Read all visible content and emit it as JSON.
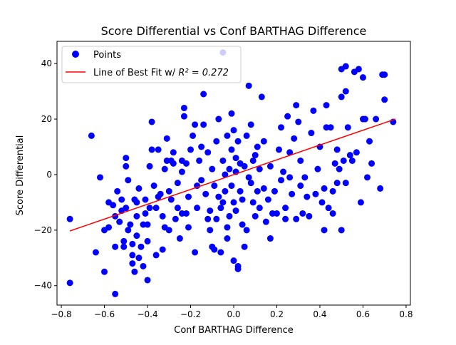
{
  "chart_data": {
    "type": "scatter",
    "title": "Score Differential vs Conf BARTHAG Difference",
    "xlabel": "Conf BARTHAG Difference",
    "ylabel": "Score Differential",
    "xlim": [
      -0.82,
      0.82
    ],
    "ylim": [
      -47,
      48
    ],
    "xticks": [
      -0.8,
      -0.6,
      -0.4,
      -0.2,
      0.0,
      0.2,
      0.4,
      0.6,
      0.8
    ],
    "xtick_labels": [
      "−0.8",
      "−0.6",
      "−0.4",
      "−0.2",
      "0.0",
      "0.2",
      "0.4",
      "0.6",
      "0.8"
    ],
    "yticks": [
      -40,
      -20,
      0,
      20,
      40
    ],
    "ytick_labels": [
      "−40",
      "−20",
      "0",
      "20",
      "40"
    ],
    "grid": false,
    "legend": {
      "placement": "top-left",
      "entries": [
        {
          "label": "Points",
          "marker": "circle",
          "color": "#0000ff"
        },
        {
          "label": "Line of Best Fit w/ ",
          "math_label": "R² = 0.272",
          "color": "#ff0000"
        }
      ]
    },
    "series": [
      {
        "name": "Points",
        "color": "#0000ff",
        "points": [
          [
            -0.76,
            -39
          ],
          [
            -0.76,
            -16
          ],
          [
            -0.66,
            14
          ],
          [
            -0.64,
            -28
          ],
          [
            -0.62,
            -1
          ],
          [
            -0.6,
            -35
          ],
          [
            -0.6,
            -20
          ],
          [
            -0.58,
            -19
          ],
          [
            -0.58,
            -10
          ],
          [
            -0.56,
            -11
          ],
          [
            -0.55,
            -43
          ],
          [
            -0.55,
            -26
          ],
          [
            -0.55,
            -15
          ],
          [
            -0.54,
            -6
          ],
          [
            -0.53,
            -17
          ],
          [
            -0.52,
            -13
          ],
          [
            -0.52,
            -9
          ],
          [
            -0.51,
            -24
          ],
          [
            -0.51,
            -26
          ],
          [
            -0.5,
            6
          ],
          [
            -0.5,
            3
          ],
          [
            -0.5,
            -12
          ],
          [
            -0.49,
            -20
          ],
          [
            -0.49,
            -2
          ],
          [
            -0.48,
            -18
          ],
          [
            -0.47,
            -32
          ],
          [
            -0.47,
            -29
          ],
          [
            -0.47,
            -25
          ],
          [
            -0.46,
            -35
          ],
          [
            -0.46,
            -9
          ],
          [
            -0.45,
            -22
          ],
          [
            -0.45,
            -15
          ],
          [
            -0.45,
            -10
          ],
          [
            -0.44,
            -5
          ],
          [
            -0.44,
            -30
          ],
          [
            -0.43,
            -26
          ],
          [
            -0.42,
            -33
          ],
          [
            -0.42,
            -18
          ],
          [
            -0.41,
            -14
          ],
          [
            -0.41,
            -9
          ],
          [
            -0.4,
            -38
          ],
          [
            -0.4,
            -24
          ],
          [
            -0.4,
            -18
          ],
          [
            -0.39,
            3
          ],
          [
            -0.39,
            -12
          ],
          [
            -0.38,
            9
          ],
          [
            -0.38,
            19
          ],
          [
            -0.37,
            -4
          ],
          [
            -0.36,
            -29
          ],
          [
            -0.36,
            -12
          ],
          [
            -0.35,
            9
          ],
          [
            -0.35,
            -8
          ],
          [
            -0.34,
            -7
          ],
          [
            -0.33,
            -27
          ],
          [
            -0.33,
            -15
          ],
          [
            -0.32,
            -19
          ],
          [
            -0.32,
            2
          ],
          [
            -0.31,
            5
          ],
          [
            -0.31,
            13
          ],
          [
            -0.3,
            -20
          ],
          [
            -0.3,
            -6
          ],
          [
            -0.29,
            5
          ],
          [
            -0.29,
            -9
          ],
          [
            -0.28,
            8
          ],
          [
            -0.28,
            4
          ],
          [
            -0.27,
            -16
          ],
          [
            -0.26,
            -12
          ],
          [
            -0.26,
            -3
          ],
          [
            -0.25,
            -23
          ],
          [
            -0.24,
            -14
          ],
          [
            -0.24,
            1
          ],
          [
            -0.24,
            5
          ],
          [
            -0.23,
            21
          ],
          [
            -0.23,
            24
          ],
          [
            -0.22,
            -14
          ],
          [
            -0.22,
            4
          ],
          [
            -0.21,
            -8
          ],
          [
            -0.21,
            -19
          ],
          [
            -0.2,
            9
          ],
          [
            -0.19,
            14
          ],
          [
            -0.18,
            18
          ],
          [
            -0.18,
            -28
          ],
          [
            -0.17,
            -4
          ],
          [
            -0.17,
            -12
          ],
          [
            -0.16,
            5
          ],
          [
            -0.15,
            10
          ],
          [
            -0.15,
            -2
          ],
          [
            -0.14,
            29
          ],
          [
            -0.14,
            18
          ],
          [
            -0.13,
            -7
          ],
          [
            -0.12,
            8
          ],
          [
            -0.12,
            -16
          ],
          [
            -0.11,
            -20
          ],
          [
            -0.11,
            -13
          ],
          [
            -0.1,
            -26
          ],
          [
            -0.1,
            2
          ],
          [
            -0.09,
            -27
          ],
          [
            -0.09,
            -4
          ],
          [
            -0.08,
            12
          ],
          [
            -0.08,
            -16
          ],
          [
            -0.07,
            20
          ],
          [
            -0.07,
            -8
          ],
          [
            -0.06,
            -12
          ],
          [
            -0.06,
            -28
          ],
          [
            -0.05,
            5
          ],
          [
            -0.05,
            -10
          ],
          [
            -0.05,
            44
          ],
          [
            -0.04,
            0
          ],
          [
            -0.04,
            -6
          ],
          [
            -0.03,
            14
          ],
          [
            -0.03,
            -23
          ],
          [
            -0.03,
            -19
          ],
          [
            -0.02,
            2
          ],
          [
            -0.02,
            -15
          ],
          [
            -0.01,
            22
          ],
          [
            -0.01,
            9
          ],
          [
            -0.01,
            -4
          ],
          [
            0.0,
            -31
          ],
          [
            0.0,
            16
          ],
          [
            0.0,
            -10
          ],
          [
            0.01,
            6
          ],
          [
            0.01,
            -13
          ],
          [
            0.01,
            1
          ],
          [
            0.02,
            -34
          ],
          [
            0.02,
            -33
          ],
          [
            0.02,
            12
          ],
          [
            0.03,
            -6
          ],
          [
            0.03,
            4
          ],
          [
            0.04,
            -18
          ],
          [
            0.04,
            -9
          ],
          [
            0.05,
            3
          ],
          [
            0.05,
            -26
          ],
          [
            0.06,
            -20
          ],
          [
            0.06,
            14
          ],
          [
            0.07,
            32
          ],
          [
            0.07,
            -1
          ],
          [
            0.08,
            -3
          ],
          [
            0.08,
            18
          ],
          [
            0.09,
            -10
          ],
          [
            0.09,
            5
          ],
          [
            0.1,
            -15
          ],
          [
            0.1,
            7
          ],
          [
            0.11,
            -6
          ],
          [
            0.11,
            10
          ],
          [
            0.12,
            -12
          ],
          [
            0.12,
            2
          ],
          [
            0.13,
            28
          ],
          [
            0.14,
            -5
          ],
          [
            0.14,
            12
          ],
          [
            0.15,
            -17
          ],
          [
            0.16,
            -9
          ],
          [
            0.17,
            3
          ],
          [
            0.17,
            -23
          ],
          [
            0.18,
            -14
          ],
          [
            0.19,
            -6
          ],
          [
            0.2,
            -14
          ],
          [
            0.21,
            9
          ],
          [
            0.22,
            -2
          ],
          [
            0.22,
            17
          ],
          [
            0.23,
            1
          ],
          [
            0.24,
            -12
          ],
          [
            0.24,
            -16
          ],
          [
            0.25,
            21
          ],
          [
            0.26,
            -1
          ],
          [
            0.26,
            8
          ],
          [
            0.27,
            -7
          ],
          [
            0.28,
            13
          ],
          [
            0.29,
            25
          ],
          [
            0.29,
            -16
          ],
          [
            0.3,
            19
          ],
          [
            0.31,
            -4
          ],
          [
            0.31,
            5
          ],
          [
            0.32,
            -14
          ],
          [
            0.33,
            -1
          ],
          [
            0.34,
            -8
          ],
          [
            0.35,
            -15
          ],
          [
            0.36,
            15
          ],
          [
            0.37,
            23
          ],
          [
            0.38,
            -7
          ],
          [
            0.39,
            2
          ],
          [
            0.4,
            10
          ],
          [
            0.41,
            -10
          ],
          [
            0.42,
            -5
          ],
          [
            0.43,
            17
          ],
          [
            0.43,
            25
          ],
          [
            0.44,
            -12
          ],
          [
            0.45,
            17
          ],
          [
            0.46,
            -14
          ],
          [
            0.46,
            -6
          ],
          [
            0.47,
            4
          ],
          [
            0.48,
            -3
          ],
          [
            0.48,
            9
          ],
          [
            0.49,
            2
          ],
          [
            0.5,
            -20
          ],
          [
            0.5,
            28
          ],
          [
            0.51,
            5
          ],
          [
            0.52,
            30
          ],
          [
            0.52,
            39
          ],
          [
            0.53,
            17
          ],
          [
            0.54,
            7
          ],
          [
            0.55,
            5
          ],
          [
            0.56,
            37
          ],
          [
            0.57,
            8
          ],
          [
            0.58,
            38
          ],
          [
            0.59,
            -10
          ],
          [
            0.6,
            20
          ],
          [
            0.6,
            35
          ],
          [
            0.61,
            20
          ],
          [
            0.62,
            -1
          ],
          [
            0.63,
            12
          ],
          [
            0.64,
            4
          ],
          [
            0.66,
            20
          ],
          [
            0.68,
            -5
          ],
          [
            0.69,
            36
          ],
          [
            0.7,
            36
          ],
          [
            0.7,
            27
          ],
          [
            0.74,
            19
          ],
          [
            0.42,
            -20
          ],
          [
            0.5,
            38
          ],
          [
            0.52,
            -3
          ]
        ]
      },
      {
        "name": "Line of Best Fit",
        "type": "line",
        "color": "#ff0000",
        "x": [
          -0.76,
          0.75
        ],
        "y": [
          -20.3,
          20.0
        ]
      }
    ]
  }
}
